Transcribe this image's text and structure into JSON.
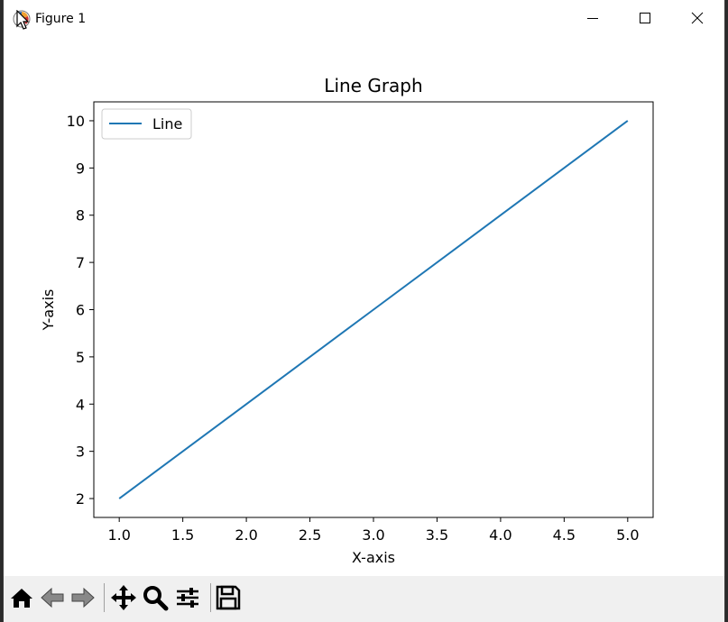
{
  "window": {
    "title": "Figure 1",
    "controls": {
      "minimize": "minimize-icon",
      "maximize": "maximize-icon",
      "close": "close-icon"
    }
  },
  "toolbar": {
    "buttons": [
      "home-icon",
      "back-arrow-icon",
      "forward-arrow-icon",
      "pan-icon",
      "zoom-icon",
      "configure-subplots-icon",
      "save-icon"
    ]
  },
  "chart_data": {
    "type": "line",
    "title": "Line Graph",
    "xlabel": "X-axis",
    "ylabel": "Y-axis",
    "xlim": [
      0.8,
      5.2
    ],
    "ylim": [
      1.6,
      10.4
    ],
    "xticks": [
      1.0,
      1.5,
      2.0,
      2.5,
      3.0,
      3.5,
      4.0,
      4.5,
      5.0
    ],
    "xtick_labels": [
      "1.0",
      "1.5",
      "2.0",
      "2.5",
      "3.0",
      "3.5",
      "4.0",
      "4.5",
      "5.0"
    ],
    "yticks": [
      2,
      3,
      4,
      5,
      6,
      7,
      8,
      9,
      10
    ],
    "ytick_labels": [
      "2",
      "3",
      "4",
      "5",
      "6",
      "7",
      "8",
      "9",
      "10"
    ],
    "grid": false,
    "legend_position": "upper-left",
    "series": [
      {
        "name": "Line",
        "color": "#1f77b4",
        "x": [
          1,
          2,
          3,
          4,
          5
        ],
        "y": [
          2,
          4,
          6,
          8,
          10
        ]
      }
    ]
  }
}
